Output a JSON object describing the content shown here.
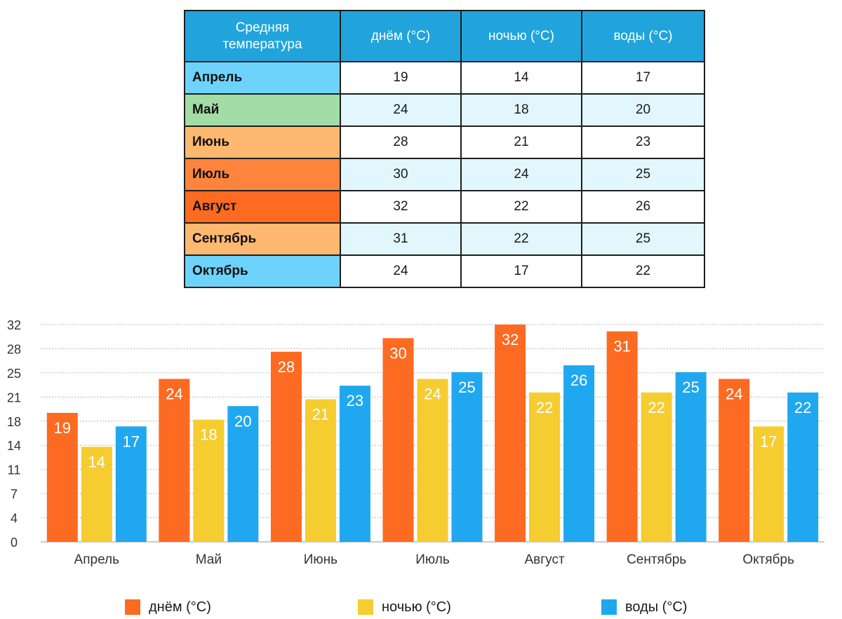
{
  "table": {
    "header": {
      "corner": "Средняя температура",
      "cols": [
        "днём (°C)",
        "ночью (°C)",
        "воды (°C)"
      ]
    },
    "rows": [
      {
        "month": "Апрель",
        "color": "#6dd3fa",
        "stripe": "#ffffff",
        "values": [
          "19",
          "14",
          "17"
        ]
      },
      {
        "month": "Май",
        "color": "#a3dda6",
        "stripe": "#e2f6fd",
        "values": [
          "24",
          "18",
          "20"
        ]
      },
      {
        "month": "Июнь",
        "color": "#ffb870",
        "stripe": "#ffffff",
        "values": [
          "28",
          "21",
          "23"
        ]
      },
      {
        "month": "Июль",
        "color": "#fd843d",
        "stripe": "#e2f6fd",
        "values": [
          "30",
          "24",
          "25"
        ]
      },
      {
        "month": "Август",
        "color": "#fd6a22",
        "stripe": "#ffffff",
        "values": [
          "32",
          "22",
          "26"
        ]
      },
      {
        "month": "Сентябрь",
        "color": "#ffb870",
        "stripe": "#e2f6fd",
        "values": [
          "31",
          "22",
          "25"
        ]
      },
      {
        "month": "Октябрь",
        "color": "#6dd3fa",
        "stripe": "#ffffff",
        "values": [
          "24",
          "17",
          "22"
        ]
      }
    ]
  },
  "chart_data": {
    "type": "bar",
    "title": "",
    "xlabel": "",
    "ylabel": "",
    "categories": [
      "Апрель",
      "Май",
      "Июнь",
      "Июль",
      "Август",
      "Сентябрь",
      "Октябрь"
    ],
    "series": [
      {
        "name": "днём (°C)",
        "color": "#fd6a21",
        "values": [
          19,
          24,
          28,
          30,
          32,
          31,
          24
        ]
      },
      {
        "name": "ночью (°C)",
        "color": "#f5cd30",
        "values": [
          14,
          18,
          21,
          24,
          22,
          22,
          17
        ]
      },
      {
        "name": "воды (°C)",
        "color": "#1fa8f0",
        "values": [
          17,
          20,
          23,
          25,
          26,
          25,
          22
        ]
      }
    ],
    "yticks": [
      "0",
      "4",
      "7",
      "11",
      "14",
      "18",
      "21",
      "25",
      "28",
      "32"
    ],
    "ylim": [
      0,
      32
    ],
    "grid": true,
    "legend_position": "bottom"
  }
}
